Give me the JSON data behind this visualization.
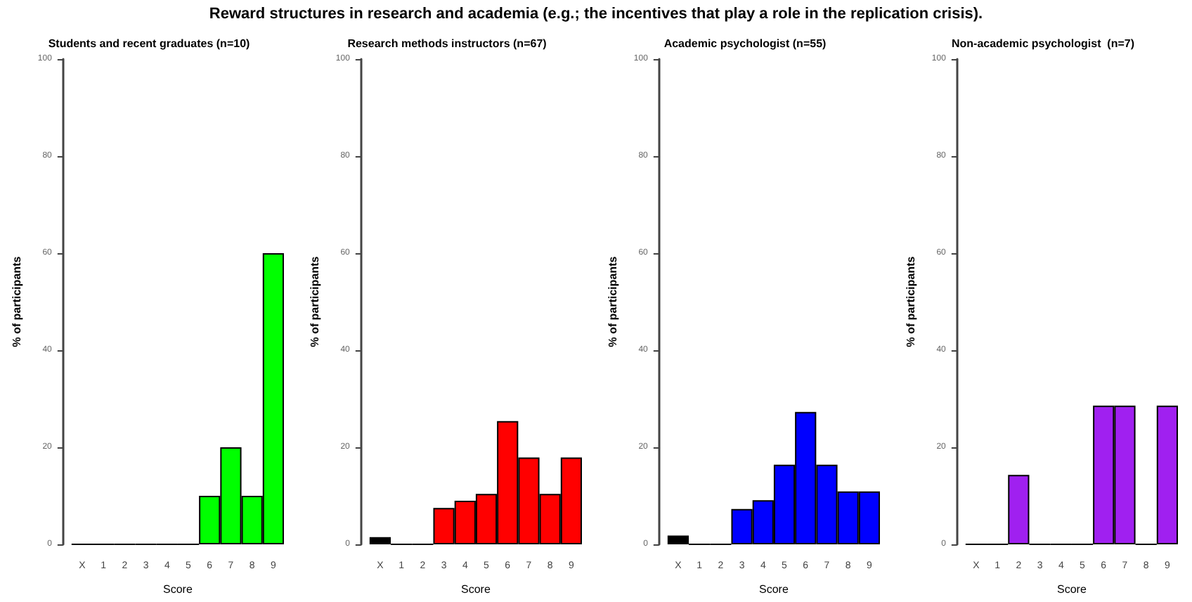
{
  "chart_data": [
    {
      "type": "bar",
      "title": "Reward structures in research and academia (e.g.; the incentives that play a role in the replication crisis).",
      "subtitle": "Students and recent graduates (n=10)",
      "xlabel": "Score",
      "ylabel": "% of participants",
      "categories": [
        "X",
        "1",
        "2",
        "3",
        "4",
        "5",
        "6",
        "7",
        "8",
        "9"
      ],
      "values": [
        0,
        0,
        0,
        0,
        0,
        0,
        10,
        20,
        10,
        60
      ],
      "colors": [
        "#000000",
        "#000000",
        "#000000",
        "#000000",
        "#000000",
        "#000000",
        "#00ff00",
        "#00ff00",
        "#00ff00",
        "#00ff00"
      ],
      "ylim": [
        0,
        100
      ],
      "yticks": [
        0,
        20,
        40,
        60,
        80,
        100
      ],
      "grid": false
    },
    {
      "type": "bar",
      "subtitle": "Research methods instructors (n=67)",
      "xlabel": "Score",
      "ylabel": "% of participants",
      "categories": [
        "X",
        "1",
        "2",
        "3",
        "4",
        "5",
        "6",
        "7",
        "8",
        "9"
      ],
      "values": [
        1.5,
        0,
        0,
        7.5,
        9,
        10.4,
        25.4,
        17.9,
        10.4,
        17.9
      ],
      "colors": [
        "#000000",
        "#000000",
        "#000000",
        "#ff0000",
        "#ff0000",
        "#ff0000",
        "#ff0000",
        "#ff0000",
        "#ff0000",
        "#ff0000"
      ],
      "ylim": [
        0,
        100
      ],
      "yticks": [
        0,
        20,
        40,
        60,
        80,
        100
      ],
      "grid": false
    },
    {
      "type": "bar",
      "subtitle": "Academic psychologist (n=55)",
      "xlabel": "Score",
      "ylabel": "% of participants",
      "categories": [
        "X",
        "1",
        "2",
        "3",
        "4",
        "5",
        "6",
        "7",
        "8",
        "9"
      ],
      "values": [
        1.8,
        0,
        0,
        7.3,
        9.1,
        16.4,
        27.3,
        16.4,
        10.9,
        10.9
      ],
      "colors": [
        "#000000",
        "#000000",
        "#000000",
        "#0000ff",
        "#0000ff",
        "#0000ff",
        "#0000ff",
        "#0000ff",
        "#0000ff",
        "#0000ff"
      ],
      "ylim": [
        0,
        100
      ],
      "yticks": [
        0,
        20,
        40,
        60,
        80,
        100
      ],
      "grid": false
    },
    {
      "type": "bar",
      "subtitle": "Non-academic psychologist  (n=7)",
      "xlabel": "Score",
      "ylabel": "% of participants",
      "categories": [
        "X",
        "1",
        "2",
        "3",
        "4",
        "5",
        "6",
        "7",
        "8",
        "9"
      ],
      "values": [
        0,
        0,
        14.3,
        0,
        0,
        0,
        28.6,
        28.6,
        0,
        28.6
      ],
      "colors": [
        "#000000",
        "#000000",
        "#a020f0",
        "#000000",
        "#000000",
        "#000000",
        "#a020f0",
        "#a020f0",
        "#000000",
        "#a020f0"
      ],
      "ylim": [
        0,
        100
      ],
      "yticks": [
        0,
        20,
        40,
        60,
        80,
        100
      ],
      "grid": false
    }
  ]
}
